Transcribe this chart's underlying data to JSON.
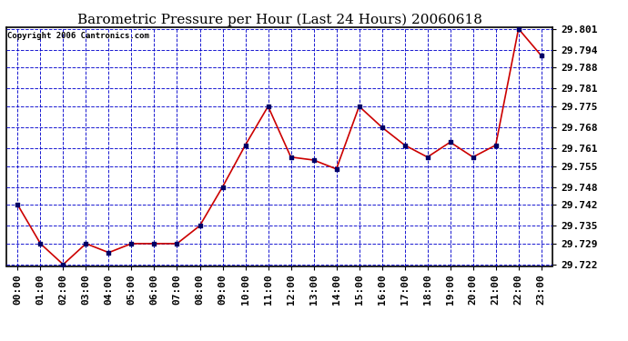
{
  "title": "Barometric Pressure per Hour (Last 24 Hours) 20060618",
  "copyright": "Copyright 2006 Cantronics.com",
  "x_labels": [
    "00:00",
    "01:00",
    "02:00",
    "03:00",
    "04:00",
    "05:00",
    "06:00",
    "07:00",
    "08:00",
    "09:00",
    "10:00",
    "11:00",
    "12:00",
    "13:00",
    "14:00",
    "15:00",
    "16:00",
    "17:00",
    "18:00",
    "19:00",
    "20:00",
    "21:00",
    "22:00",
    "23:00"
  ],
  "y_values": [
    29.742,
    29.729,
    29.722,
    29.729,
    29.726,
    29.729,
    29.729,
    29.729,
    29.735,
    29.748,
    29.762,
    29.775,
    29.758,
    29.757,
    29.754,
    29.775,
    29.768,
    29.762,
    29.758,
    29.763,
    29.758,
    29.762,
    29.801,
    29.792
  ],
  "y_min": 29.722,
  "y_max": 29.801,
  "y_ticks": [
    29.722,
    29.729,
    29.735,
    29.742,
    29.748,
    29.755,
    29.761,
    29.768,
    29.775,
    29.781,
    29.788,
    29.794,
    29.801
  ],
  "line_color": "#cc0000",
  "marker_color": "#000066",
  "grid_color": "#0000cc",
  "bg_color": "#ffffff",
  "plot_bg_color": "#ffffff",
  "title_fontsize": 11,
  "copyright_fontsize": 6.5,
  "tick_fontsize": 8,
  "fig_width": 6.9,
  "fig_height": 3.75
}
